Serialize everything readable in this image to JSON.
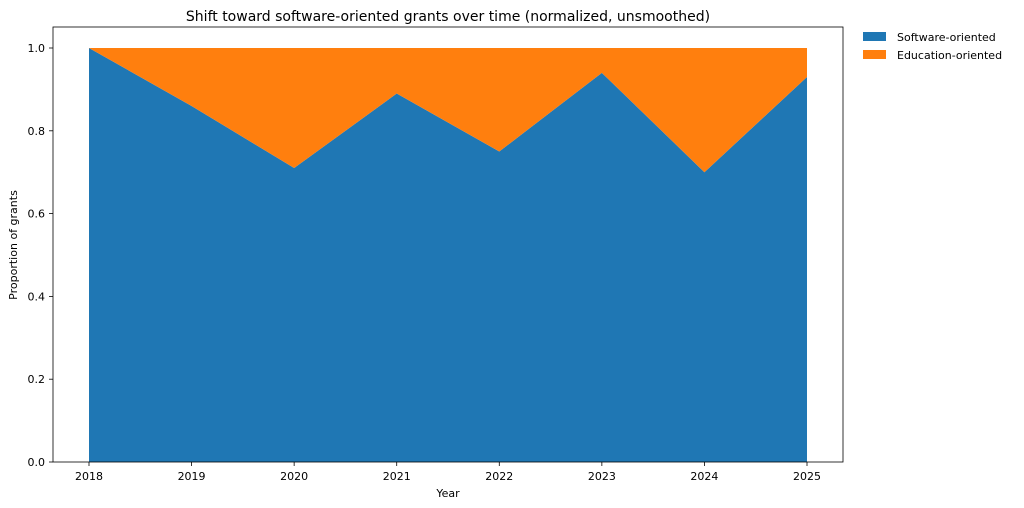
{
  "chart_data": {
    "type": "area",
    "stacked": true,
    "title": "Shift toward software-oriented grants over time (normalized, unsmoothed)",
    "xlabel": "Year",
    "ylabel": "Proportion of grants",
    "x": [
      2018,
      2019,
      2020,
      2021,
      2022,
      2023,
      2024,
      2025
    ],
    "series": [
      {
        "name": "Software-oriented",
        "color": "#1f77b4",
        "values": [
          1.0,
          0.86,
          0.71,
          0.89,
          0.75,
          0.94,
          0.7,
          0.93
        ]
      },
      {
        "name": "Education-oriented",
        "color": "#ff7f0e",
        "values": [
          0.0,
          0.14,
          0.29,
          0.11,
          0.25,
          0.06,
          0.3,
          0.07
        ]
      }
    ],
    "ylim": [
      0,
      1.05
    ],
    "yticks": [
      "0.0",
      "0.2",
      "0.4",
      "0.6",
      "0.8",
      "1.0"
    ],
    "xticks": [
      "2018",
      "2019",
      "2020",
      "2021",
      "2022",
      "2023",
      "2024",
      "2025"
    ],
    "grid": false,
    "legend_position": "outside upper right"
  }
}
